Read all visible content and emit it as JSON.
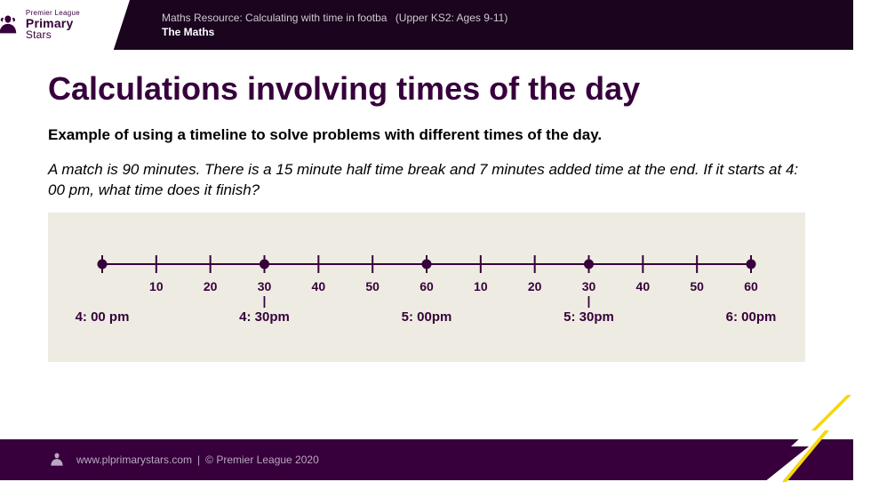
{
  "header": {
    "logo": {
      "line1": "Premier League",
      "line2": "Primary",
      "line3": "Stars"
    },
    "resource_prefix": "Maths Resource: ",
    "resource_title": "Calculating with time in footba",
    "age_group": "(Upper KS2: Ages 9-11)",
    "subject": "The Maths"
  },
  "content": {
    "title": "Calculations involving times of the day",
    "subtitle": "Example of using a timeline to solve problems with different times of the day.",
    "problem": "A match is 90 minutes. There is a 15 minute half time break and 7 minutes added time at the end. If it starts at 4: 00 pm, what time does it finish?"
  },
  "timeline": {
    "type": "timeline",
    "background_color": "#eeece2",
    "line_color": "#37003c",
    "dot_color": "#37003c",
    "label_color": "#37003c",
    "label_fontsize": 14,
    "time_fontsize": 15,
    "minor_ticks_count": 12,
    "minute_labels": [
      "10",
      "20",
      "30",
      "40",
      "50",
      "60",
      "10",
      "20",
      "30",
      "40",
      "50",
      "60"
    ],
    "major_dots": [
      0,
      3,
      6,
      9,
      12
    ],
    "time_labels": [
      "4: 00 pm",
      "4: 30pm",
      "5: 00pm",
      "5: 30pm",
      "6: 00pm"
    ],
    "time_positions": [
      0,
      3,
      6,
      9,
      12
    ],
    "hash_positions": [
      3,
      9
    ]
  },
  "footer": {
    "url": "www.plprimarystars.com",
    "copyright": "© Premier League 2020"
  },
  "colors": {
    "brand_purple": "#37003c",
    "brand_dark": "#1a041e",
    "panel_bg": "#eeece2"
  }
}
